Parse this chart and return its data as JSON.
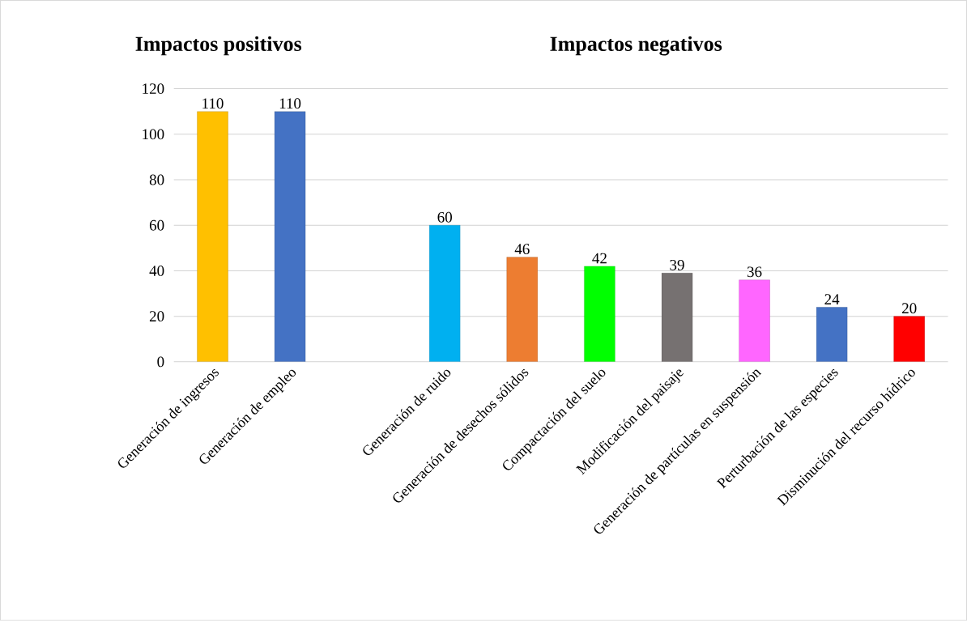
{
  "chart_data": {
    "type": "bar",
    "annotations": [
      "Impactos positivos",
      "Impactos negativos"
    ],
    "categories": [
      "Generación de ingresos",
      "Generación de empleo",
      null,
      "Generación de ruido",
      "Generación de desechos sólidos",
      "Compactación del suelo",
      "Modificación del paisaje",
      "Generación de partículas en suspensión",
      "Perturbación de las especies",
      "Disminución del recurso hídrico"
    ],
    "values": [
      110,
      110,
      null,
      60,
      46,
      42,
      39,
      36,
      24,
      20
    ],
    "colors": [
      "#ffc000",
      "#4472c4",
      null,
      "#00b0f0",
      "#ed7d31",
      "#00ff00",
      "#767171",
      "#ff66ff",
      "#4472c4",
      "#ff0000"
    ],
    "ylim": [
      0,
      120
    ],
    "yticks": [
      0,
      20,
      40,
      60,
      80,
      100,
      120
    ],
    "grid": "y",
    "data_labels": true
  }
}
